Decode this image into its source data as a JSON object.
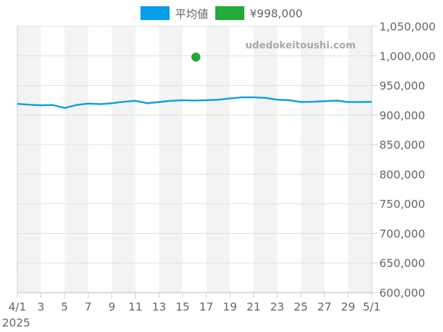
{
  "legend": {
    "items": [
      {
        "label": "平均値",
        "color": "#069ee8"
      },
      {
        "label": "¥998,000",
        "color": "#22aa3a"
      }
    ]
  },
  "watermark": "udedokeitoushi.com",
  "chart_data": {
    "type": "line",
    "title": "",
    "xlabel": "",
    "ylabel": "",
    "year_label": "2025",
    "x_tick_labels": [
      "4/1",
      "3",
      "5",
      "7",
      "9",
      "11",
      "13",
      "15",
      "17",
      "19",
      "21",
      "23",
      "25",
      "27",
      "29",
      "5/1"
    ],
    "y_tick_labels": [
      "1,050,000",
      "1,000,000",
      "950,000",
      "900,000",
      "850,000",
      "800,000",
      "750,000",
      "700,000",
      "650,000",
      "600,000"
    ],
    "ylim": [
      600000,
      1050000
    ],
    "xlim_days": [
      0,
      30
    ],
    "grid": true,
    "legend_position": "top",
    "series": [
      {
        "name": "平均値",
        "color": "#069ee8",
        "x_days": [
          0,
          1,
          2,
          3,
          4,
          5,
          6,
          7,
          8,
          9,
          10,
          11,
          12,
          13,
          14,
          15,
          16,
          17,
          18,
          19,
          20,
          21,
          22,
          23,
          24,
          25,
          26,
          27,
          28,
          29,
          30
        ],
        "values": [
          919000,
          917500,
          916500,
          917000,
          912000,
          917000,
          919500,
          918500,
          920000,
          922500,
          924000,
          920000,
          922000,
          924000,
          925000,
          924500,
          925000,
          926000,
          928000,
          930000,
          930000,
          929000,
          926000,
          925000,
          922000,
          922500,
          923500,
          924500,
          922000,
          922000,
          922500
        ]
      },
      {
        "name": "¥998,000",
        "color": "#22aa3a",
        "type": "scatter",
        "x_days": [
          15
        ],
        "values": [
          998000
        ]
      }
    ]
  }
}
